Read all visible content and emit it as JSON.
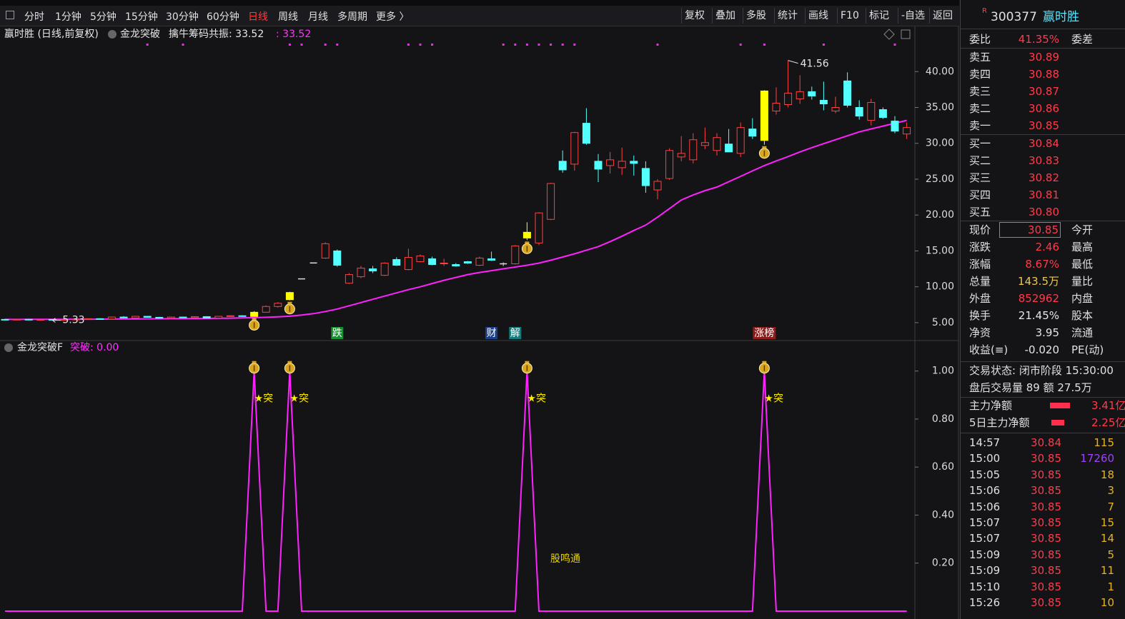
{
  "toolbar": {
    "periods": [
      "分时",
      "1分钟",
      "5分钟",
      "15分钟",
      "30分钟",
      "60分钟",
      "日线",
      "周线",
      "月线",
      "多周期",
      "更多 〉"
    ],
    "active_period": 6,
    "buttons": [
      "复权",
      "叠加",
      "多股",
      "统计",
      "画线",
      "F10",
      "标记",
      "-自选",
      "返回"
    ]
  },
  "chart_data": [
    {
      "type": "candlestick",
      "title": "赢时胜 (日线,前复权)",
      "indicator": "金龙突破",
      "indicator_value": "擒牛筹码共振: 33.52",
      "indicator_value2": ": 33.52",
      "ylim": [
        2.7,
        46.0
      ],
      "yticks": [
        {
          "value": 5,
          "label": "5.00"
        },
        {
          "value": 10,
          "label": "10.00"
        },
        {
          "value": 15,
          "label": "15.00"
        },
        {
          "value": 20,
          "label": "20.00"
        },
        {
          "value": 25,
          "label": "25.00"
        },
        {
          "value": 30,
          "label": "30.00"
        },
        {
          "value": 35,
          "label": "35.00"
        },
        {
          "value": 40,
          "label": "40.00"
        }
      ],
      "up_color": "#ff4040",
      "down_color": "#54ffff",
      "signal_color": "#ffff00",
      "ma_color": "#ff22ff",
      "ohlc": [
        [
          5.45,
          5.52,
          5.38,
          5.42
        ],
        [
          5.42,
          5.5,
          5.37,
          5.46
        ],
        [
          5.46,
          5.5,
          5.36,
          5.4
        ],
        [
          5.4,
          5.47,
          5.36,
          5.44
        ],
        [
          5.44,
          5.48,
          5.33,
          5.38
        ],
        [
          5.38,
          5.46,
          5.35,
          5.43
        ],
        [
          5.43,
          5.52,
          5.4,
          5.48
        ],
        [
          5.48,
          5.6,
          5.44,
          5.55
        ],
        [
          5.55,
          5.62,
          5.46,
          5.5
        ],
        [
          5.5,
          5.85,
          5.48,
          5.78
        ],
        [
          5.78,
          5.9,
          5.62,
          5.66
        ],
        [
          5.66,
          5.95,
          5.6,
          5.88
        ],
        [
          5.88,
          5.92,
          5.7,
          5.74
        ],
        [
          5.74,
          5.8,
          5.58,
          5.62
        ],
        [
          5.62,
          5.82,
          5.6,
          5.78
        ],
        [
          5.78,
          5.84,
          5.66,
          5.7
        ],
        [
          5.7,
          5.88,
          5.66,
          5.84
        ],
        [
          5.84,
          5.9,
          5.6,
          5.64
        ],
        [
          5.64,
          5.92,
          5.62,
          5.88
        ],
        [
          5.88,
          6.0,
          5.8,
          5.96
        ],
        [
          5.96,
          6.02,
          5.82,
          5.86
        ],
        [
          5.86,
          6.6,
          5.84,
          6.45
        ],
        [
          6.45,
          7.4,
          6.4,
          7.25
        ],
        [
          7.25,
          7.85,
          7.1,
          7.7
        ],
        [
          8.2,
          9.3,
          8.1,
          9.2
        ],
        [
          11.1,
          11.1,
          11.1,
          11.1
        ],
        [
          13.32,
          13.32,
          13.32,
          13.32
        ],
        [
          14.0,
          16.2,
          13.9,
          16.0
        ],
        [
          15.0,
          15.2,
          12.8,
          13.0
        ],
        [
          10.5,
          11.9,
          10.4,
          11.7
        ],
        [
          11.4,
          12.9,
          11.2,
          12.6
        ],
        [
          12.5,
          12.9,
          11.9,
          12.2
        ],
        [
          11.6,
          13.4,
          11.5,
          13.3
        ],
        [
          13.8,
          14.1,
          12.9,
          13.0
        ],
        [
          12.4,
          15.3,
          12.3,
          14.1
        ],
        [
          13.5,
          14.5,
          13.4,
          14.3
        ],
        [
          13.9,
          14.2,
          13.0,
          13.1
        ],
        [
          13.2,
          13.9,
          12.9,
          13.3
        ],
        [
          13.1,
          13.3,
          12.8,
          12.9
        ],
        [
          13.5,
          13.6,
          13.2,
          13.3
        ],
        [
          13.0,
          14.2,
          12.9,
          14.0
        ],
        [
          13.9,
          14.9,
          13.6,
          13.7
        ],
        [
          13.2,
          13.4,
          12.9,
          13.2
        ],
        [
          13.2,
          15.8,
          13.1,
          15.7
        ],
        [
          16.8,
          19.0,
          16.5,
          17.6
        ],
        [
          16.1,
          20.4,
          15.8,
          20.3
        ],
        [
          19.4,
          24.5,
          19.3,
          24.4
        ],
        [
          27.5,
          29.0,
          25.9,
          26.3
        ],
        [
          27.1,
          31.6,
          26.2,
          31.5
        ],
        [
          32.8,
          34.9,
          29.8,
          30.0
        ],
        [
          27.5,
          28.5,
          24.6,
          26.4
        ],
        [
          26.9,
          28.8,
          25.8,
          27.7
        ],
        [
          26.6,
          29.4,
          25.6,
          27.5
        ],
        [
          27.5,
          28.3,
          25.5,
          27.2
        ],
        [
          26.5,
          27.5,
          23.1,
          24.1
        ],
        [
          23.5,
          25.0,
          22.2,
          24.7
        ],
        [
          25.1,
          29.3,
          24.9,
          29.0
        ],
        [
          28.1,
          31.0,
          27.5,
          28.6
        ],
        [
          27.7,
          31.4,
          27.2,
          30.5
        ],
        [
          29.7,
          32.2,
          29.2,
          30.1
        ],
        [
          29.0,
          31.4,
          28.3,
          30.8
        ],
        [
          29.9,
          32.0,
          28.8,
          28.8
        ],
        [
          28.6,
          32.9,
          28.1,
          32.2
        ],
        [
          32.0,
          33.5,
          30.6,
          31.0
        ],
        [
          30.4,
          37.4,
          29.8,
          37.3
        ],
        [
          34.5,
          37.8,
          34.0,
          35.6
        ],
        [
          35.4,
          41.56,
          35.0,
          37.0
        ],
        [
          36.2,
          39.5,
          35.5,
          37.2
        ],
        [
          37.2,
          37.9,
          36.1,
          36.6
        ],
        [
          36.0,
          38.6,
          34.6,
          35.5
        ],
        [
          34.5,
          36.5,
          34.2,
          35.0
        ],
        [
          38.7,
          39.9,
          35.0,
          35.3
        ],
        [
          35.0,
          36.0,
          33.3,
          33.8
        ],
        [
          33.2,
          36.2,
          32.5,
          35.7
        ],
        [
          34.7,
          35.0,
          33.4,
          33.6
        ],
        [
          33.1,
          33.8,
          31.4,
          31.7
        ],
        [
          31.3,
          32.9,
          30.6,
          32.2
        ]
      ],
      "ma": [
        5.45,
        5.45,
        5.46,
        5.46,
        5.47,
        5.47,
        5.48,
        5.48,
        5.49,
        5.5,
        5.51,
        5.52,
        5.53,
        5.54,
        5.55,
        5.56,
        5.57,
        5.59,
        5.61,
        5.63,
        5.66,
        5.7,
        5.75,
        5.82,
        5.9,
        6.05,
        6.25,
        6.55,
        6.9,
        7.35,
        7.8,
        8.25,
        8.7,
        9.15,
        9.6,
        10.0,
        10.45,
        10.9,
        11.3,
        11.7,
        12.0,
        12.25,
        12.5,
        12.75,
        13.0,
        13.3,
        13.7,
        14.15,
        14.6,
        15.1,
        15.6,
        16.3,
        17.05,
        17.85,
        18.6,
        19.7,
        20.9,
        22.1,
        22.8,
        23.4,
        23.9,
        24.65,
        25.4,
        26.15,
        26.9,
        27.55,
        28.15,
        28.8,
        29.4,
        29.95,
        30.5,
        31.05,
        31.6,
        32.0,
        32.4,
        32.8,
        33.2
      ],
      "high_label": "41.56",
      "low_label": "5.33",
      "signals": [
        21,
        24,
        44,
        64
      ],
      "signal_dots": [
        12,
        15,
        24,
        25,
        27,
        28,
        34,
        35,
        36,
        42,
        43,
        44,
        45,
        46,
        47,
        48,
        55,
        62,
        64,
        69,
        75
      ],
      "events": [
        {
          "label": "跌",
          "index": 28,
          "color": "#13912c"
        },
        {
          "label": "财",
          "index": 41,
          "color": "#1d3f8a"
        },
        {
          "label": "解",
          "index": 43,
          "color": "#127a7a"
        },
        {
          "label": "涨榜",
          "index": 64,
          "color": "#8a1c1c"
        }
      ]
    },
    {
      "type": "line",
      "title": "金龙突破F",
      "legend": "突破: 0.00",
      "color": "#ff22ff",
      "ylim": [
        -0.012,
        1.124
      ],
      "yticks": [
        {
          "value": 0.2,
          "label": "0.20"
        },
        {
          "value": 0.4,
          "label": "0.40"
        },
        {
          "value": 0.6,
          "label": "0.60"
        },
        {
          "value": 0.8,
          "label": "0.80"
        },
        {
          "value": 1,
          "label": "1.00"
        }
      ],
      "values": [
        0,
        0,
        0,
        0,
        0,
        0,
        0,
        0,
        0,
        0,
        0,
        0,
        0,
        0,
        0,
        0,
        0,
        0,
        0,
        0,
        0,
        1,
        0,
        0,
        1,
        0,
        0,
        0,
        0,
        0,
        0,
        0,
        0,
        0,
        0,
        0,
        0,
        0,
        0,
        0,
        0,
        0,
        0,
        0,
        1,
        0,
        0,
        0,
        0,
        0,
        0,
        0,
        0,
        0,
        0,
        0,
        0,
        0,
        0,
        0,
        0,
        0,
        0,
        0,
        1,
        0,
        0,
        0,
        0,
        0,
        0,
        0,
        0,
        0,
        0,
        0,
        0
      ],
      "peak_label": "★突",
      "watermark": "股鸣通"
    }
  ],
  "quote": {
    "badge": "R",
    "code": "300377",
    "name": "赢时胜",
    "ratio_label": "委比",
    "ratio": "41.35%",
    "diff_label": "委差",
    "asks": [
      {
        "label": "卖五",
        "price": "30.89"
      },
      {
        "label": "卖四",
        "price": "30.88"
      },
      {
        "label": "卖三",
        "price": "30.87"
      },
      {
        "label": "卖二",
        "price": "30.86"
      },
      {
        "label": "卖一",
        "price": "30.85"
      }
    ],
    "bids": [
      {
        "label": "买一",
        "price": "30.84"
      },
      {
        "label": "买二",
        "price": "30.83"
      },
      {
        "label": "买三",
        "price": "30.82"
      },
      {
        "label": "买四",
        "price": "30.81"
      },
      {
        "label": "买五",
        "price": "30.80"
      }
    ],
    "stats": [
      {
        "label": "现价",
        "value": "30.85",
        "label2": "今开",
        "color": "#ff3b4b"
      },
      {
        "label": "涨跌",
        "value": "2.46",
        "label2": "最高",
        "color": "#ff3b4b"
      },
      {
        "label": "涨幅",
        "value": "8.67%",
        "label2": "最低",
        "color": "#ff3b4b"
      },
      {
        "label": "总量",
        "value": "143.5万",
        "label2": "量比",
        "color": "#e8c85a"
      },
      {
        "label": "外盘",
        "value": "852962",
        "label2": "内盘",
        "color": "#ff3b4b"
      },
      {
        "label": "换手",
        "value": "21.45%",
        "label2": "股本",
        "color": "#e6e6e6"
      },
      {
        "label": "净资",
        "value": "3.95",
        "label2": "流通",
        "color": "#e6e6e6"
      },
      {
        "label": "收益(≡)",
        "value": "-0.020",
        "label2": "PE(动)",
        "color": "#e6e6e6"
      }
    ],
    "status": "交易状态: 闭市阶段 15:30:00",
    "after_hours": "盘后交易量 89 额 27.5万",
    "flows": [
      {
        "label": "主力净额",
        "value": "3.41亿"
      },
      {
        "label": "5日主力净额",
        "value": "2.25亿"
      }
    ],
    "ticks": [
      {
        "time": "14:57",
        "price": "30.84",
        "volume": "115",
        "color": "#e6b422"
      },
      {
        "time": "15:00",
        "price": "30.85",
        "volume": "17260",
        "color": "#a040ff"
      },
      {
        "time": "15:05",
        "price": "30.85",
        "volume": "18",
        "color": "#e6b422"
      },
      {
        "time": "15:06",
        "price": "30.85",
        "volume": "3",
        "color": "#e6b422"
      },
      {
        "time": "15:06",
        "price": "30.85",
        "volume": "7",
        "color": "#e6b422"
      },
      {
        "time": "15:07",
        "price": "30.85",
        "volume": "15",
        "color": "#e6b422"
      },
      {
        "time": "15:07",
        "price": "30.85",
        "volume": "14",
        "color": "#e6b422"
      },
      {
        "time": "15:09",
        "price": "30.85",
        "volume": "5",
        "color": "#e6b422"
      },
      {
        "time": "15:09",
        "price": "30.85",
        "volume": "11",
        "color": "#e6b422"
      },
      {
        "time": "15:10",
        "price": "30.85",
        "volume": "1",
        "color": "#e6b422"
      },
      {
        "time": "15:26",
        "price": "30.85",
        "volume": "10",
        "color": "#e6b422"
      }
    ]
  }
}
